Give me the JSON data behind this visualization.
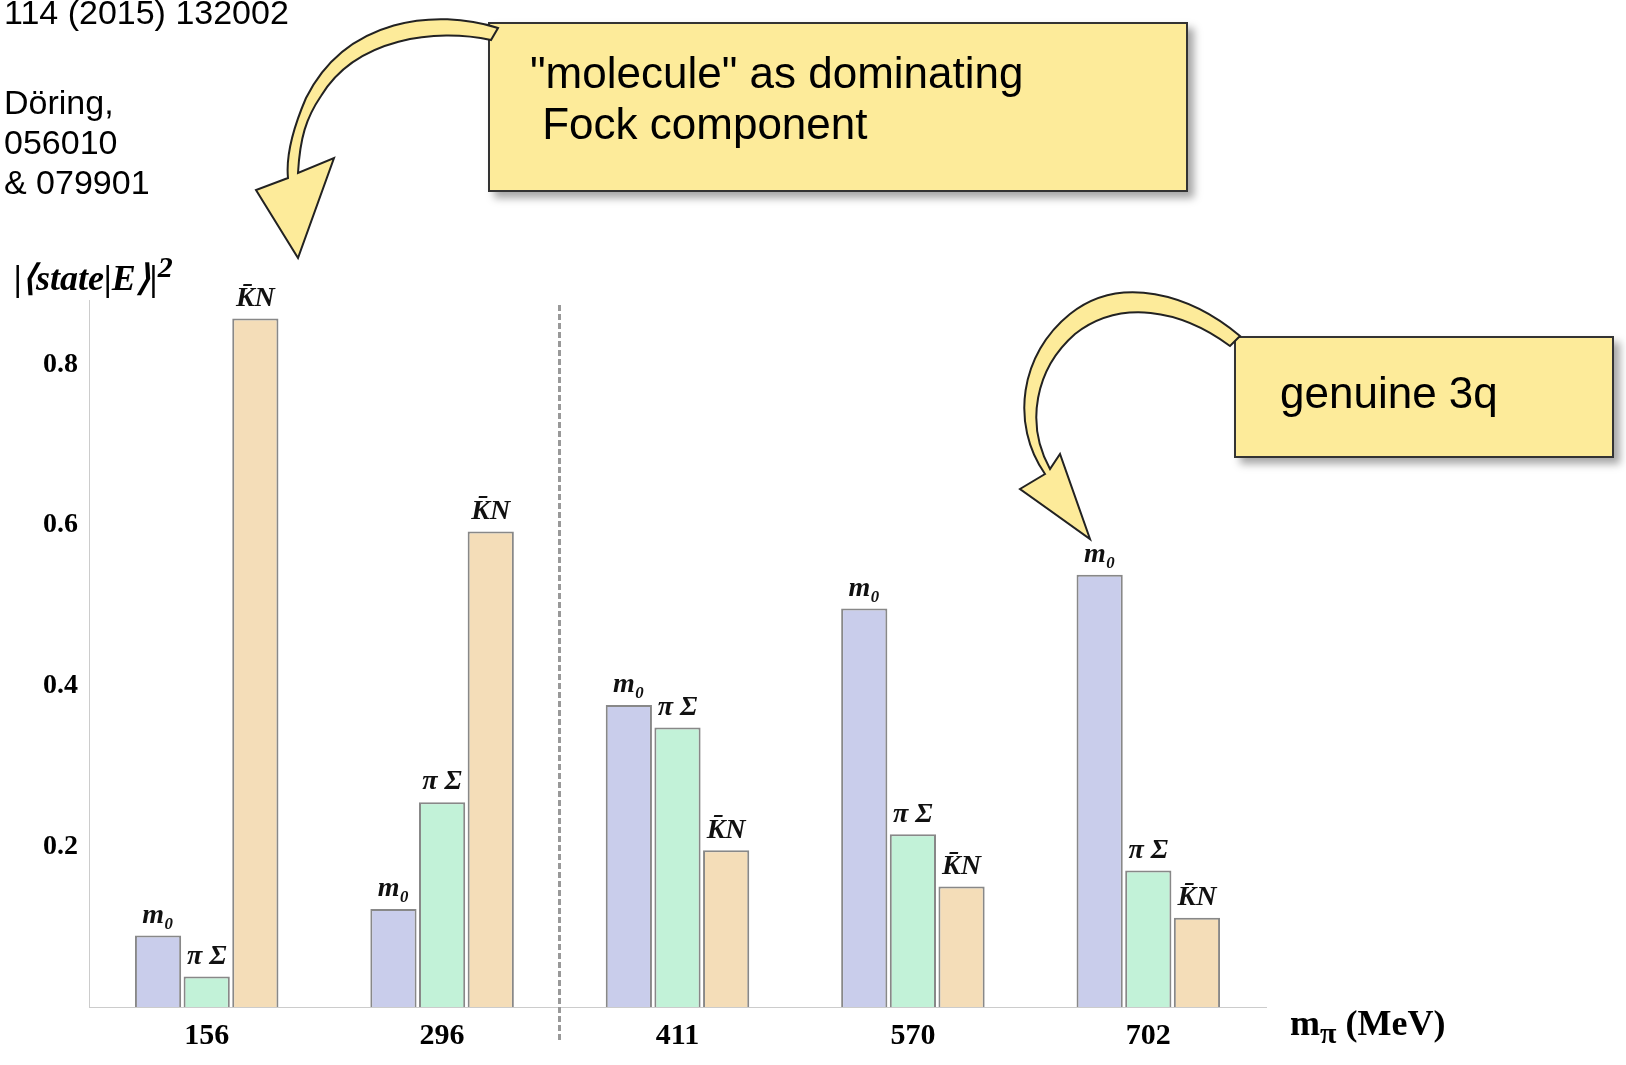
{
  "chart_data": {
    "type": "bar",
    "ylabel": "|⟨state|E⟩|$^{2}$",
    "xlabel": "m$_{π}$ (MeV)",
    "categories": [
      "156",
      "296",
      "411",
      "570",
      "702"
    ],
    "series": [
      {
        "name": "m₀",
        "color": "#c9cdeb",
        "values": [
          0.089,
          0.122,
          0.376,
          0.496,
          0.538
        ]
      },
      {
        "name": "π Σ",
        "color": "#c2f2d8",
        "values": [
          0.038,
          0.255,
          0.348,
          0.215,
          0.17
        ]
      },
      {
        "name": "K̄N",
        "color": "#f4ddb8",
        "values": [
          0.857,
          0.592,
          0.195,
          0.15,
          0.111
        ]
      }
    ],
    "ylim": [
      0,
      0.88
    ],
    "yticks": [
      0.2,
      0.4,
      0.6,
      0.8
    ],
    "grid": false,
    "legend": false,
    "annotations": [
      "114 (2015) 132002",
      "Döring,",
      "056010",
      "& 079901",
      "\"molecule\" as dominating\n Fock component",
      "genuine 3q"
    ]
  }
}
